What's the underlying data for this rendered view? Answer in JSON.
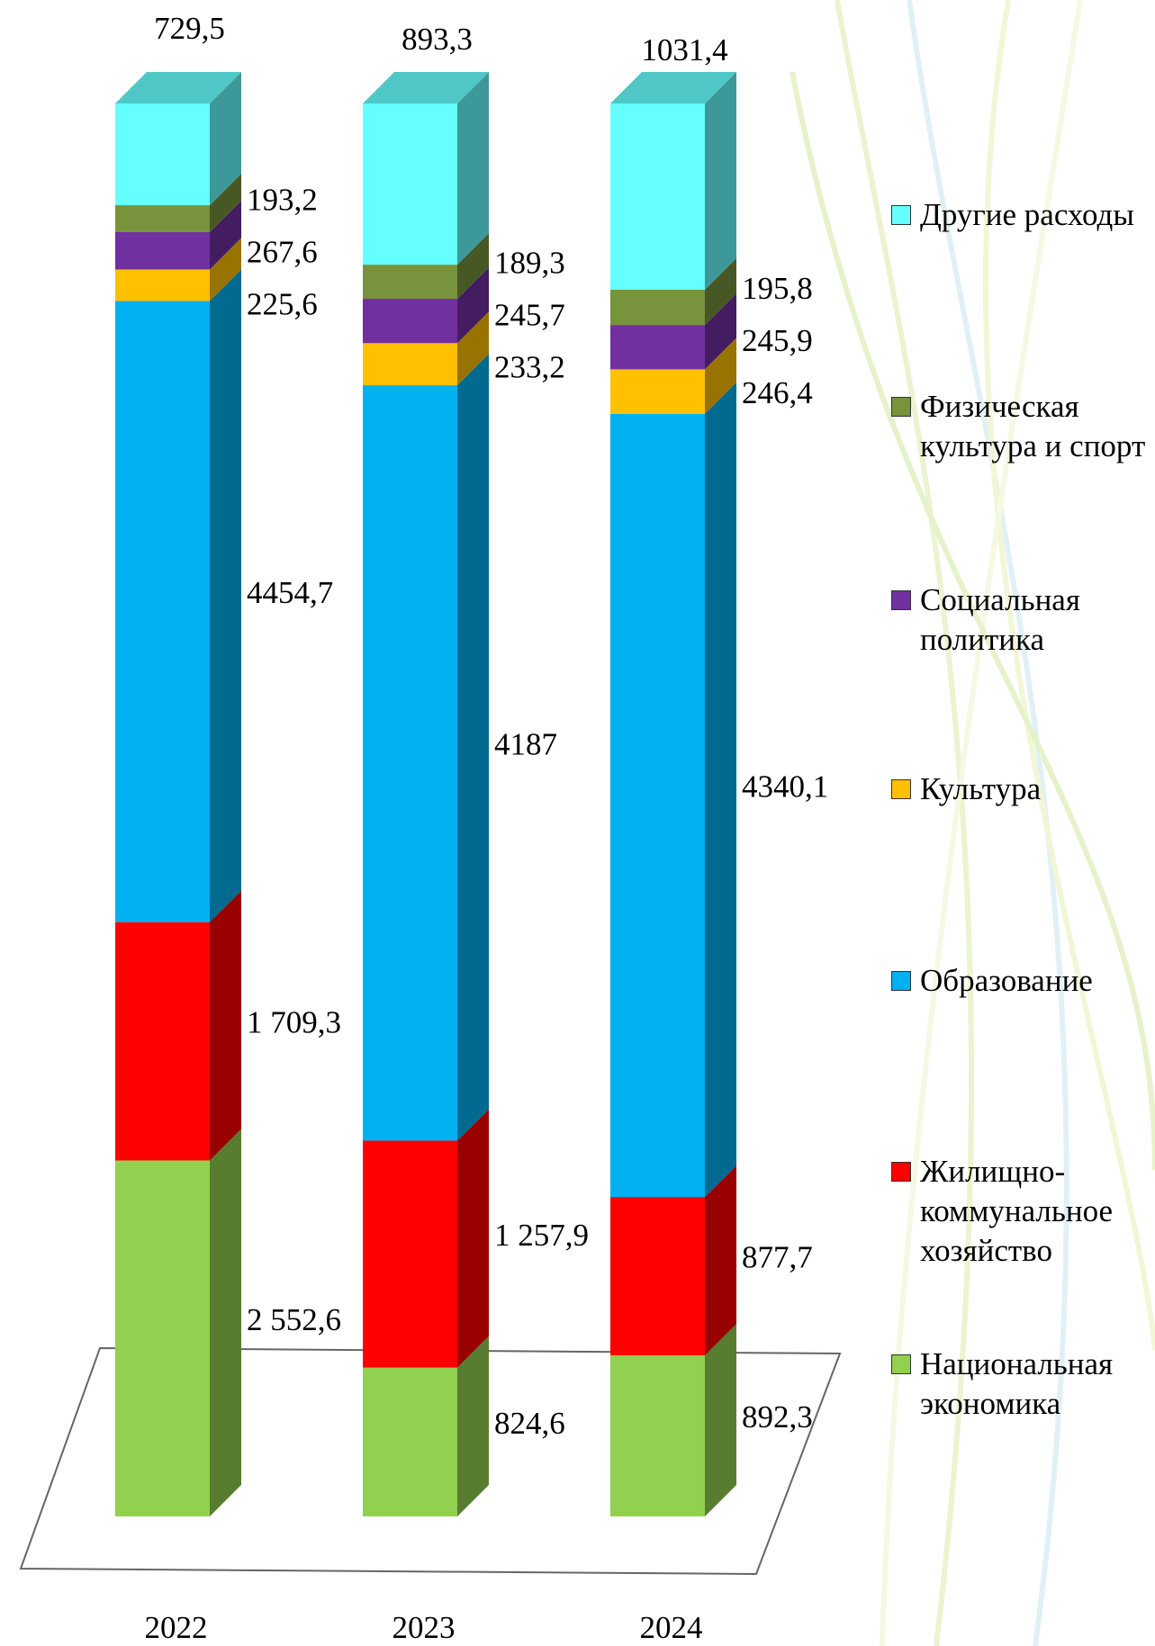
{
  "chart_data": {
    "type": "bar",
    "stacked": true,
    "categories": [
      "2022",
      "2023",
      "2024"
    ],
    "series": [
      {
        "name": "Национальная экономика",
        "color": "#92d050",
        "values": [
          2552.6,
          824.6,
          892.3
        ],
        "value_labels": [
          "2 552,6",
          "824,6",
          "892,3"
        ]
      },
      {
        "name": "Жилищно-коммунальное хозяйство",
        "color": "#ff0000",
        "values": [
          1709.3,
          1257.9,
          877.7
        ],
        "value_labels": [
          "1 709,3",
          "1 257,9",
          "877,7"
        ]
      },
      {
        "name": "Образование",
        "color": "#00b0f0",
        "values": [
          4454.7,
          4187,
          4340.1
        ],
        "value_labels": [
          "4454,7",
          "4187",
          "4340,1"
        ]
      },
      {
        "name": "Культура",
        "color": "#ffc000",
        "values": [
          225.6,
          233.2,
          246.4
        ],
        "value_labels": [
          "225,6",
          "233,2",
          "246,4"
        ]
      },
      {
        "name": "Социальная политика",
        "color": "#7030a0",
        "values": [
          267.6,
          245.7,
          245.9
        ],
        "value_labels": [
          "267,6",
          "245,7",
          "245,9"
        ]
      },
      {
        "name": "Физическая культура  и спорт",
        "color": "#77933c",
        "values": [
          193.2,
          189.3,
          195.8
        ],
        "value_labels": [
          "193,2",
          "189,3",
          "195,8"
        ]
      },
      {
        "name": "Другие расходы",
        "color": "#66ffff",
        "values": [
          729.5,
          893.3,
          1031.4
        ],
        "value_labels": [
          "729,5",
          "893,3",
          "1031,4"
        ]
      }
    ],
    "legend": "right"
  }
}
